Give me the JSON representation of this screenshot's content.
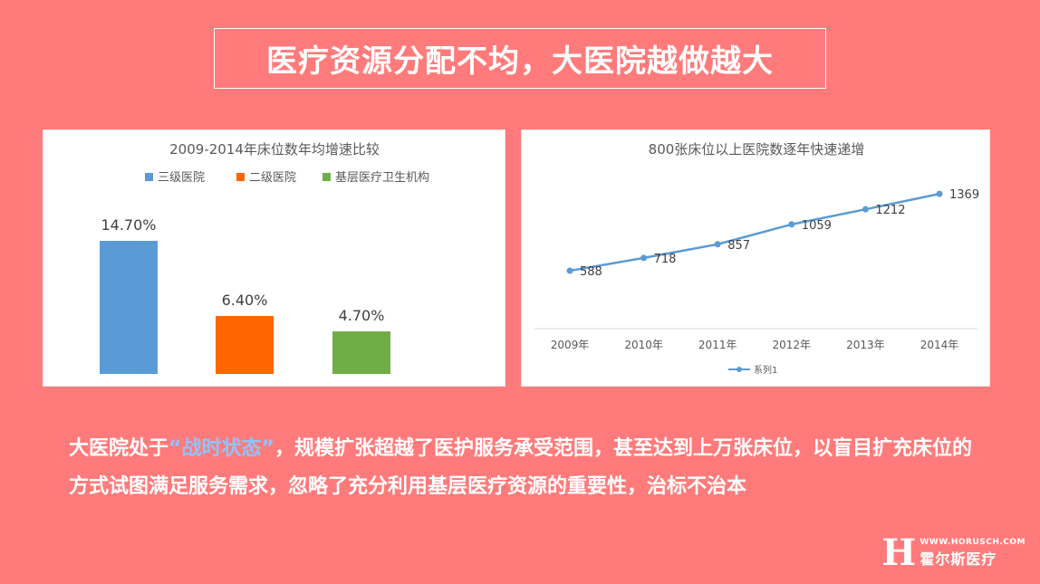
{
  "header": {
    "title": "医疗资源分配不均，大医院越做越大"
  },
  "chart_data": [
    {
      "type": "bar",
      "title": "2009-2014年床位数年均增速比较",
      "categories": [
        "三级医院",
        "二级医院",
        "基层医疗卫生机构"
      ],
      "values": [
        14.7,
        6.4,
        4.7
      ],
      "value_labels": [
        "14.70%",
        "6.40%",
        "4.70%"
      ],
      "colors": [
        "#5b9bd5",
        "#ff6600",
        "#70ad47"
      ],
      "legend": "top",
      "grid": false
    },
    {
      "type": "line",
      "title": "800张床位以上医院数逐年快速递增",
      "x": [
        "2009年",
        "2010年",
        "2011年",
        "2012年",
        "2013年",
        "2014年"
      ],
      "series": [
        {
          "name": "系列1",
          "values": [
            588,
            718,
            857,
            1059,
            1212,
            1369
          ],
          "color": "#5b9bd5"
        }
      ],
      "legend": "bottom",
      "grid": false
    }
  ],
  "body": {
    "text_before": "大医院处于",
    "highlight": "“战时状态”",
    "text_after": "，规模扩张超越了医护服务承受范围，甚至达到上万张床位，以盲目扩充床位的方式试图满足服务需求，忽略了充分利用基层医疗资源的重要性，治标不治本"
  },
  "logo": {
    "url": "WWW.HORUSCH.COM",
    "name": "霍尔斯医疗",
    "mark": "H"
  }
}
